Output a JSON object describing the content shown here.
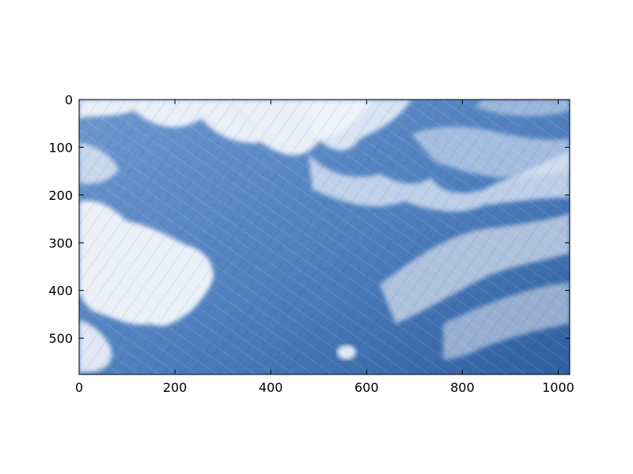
{
  "figure": {
    "image_description_colors": {
      "sky_blue": "#4f7fbe",
      "deep_blue": "#2f5f9f",
      "cloud_white": "#f4f6fb",
      "cloud_gray": "#c9d4e6"
    },
    "axes": {
      "x_ticks": [
        "0",
        "200",
        "400",
        "600",
        "800",
        "1000"
      ],
      "y_ticks": [
        "0",
        "100",
        "200",
        "300",
        "400",
        "500"
      ],
      "x_range": [
        0,
        1024
      ],
      "y_range": [
        0,
        576
      ],
      "y_inverted": true
    }
  }
}
